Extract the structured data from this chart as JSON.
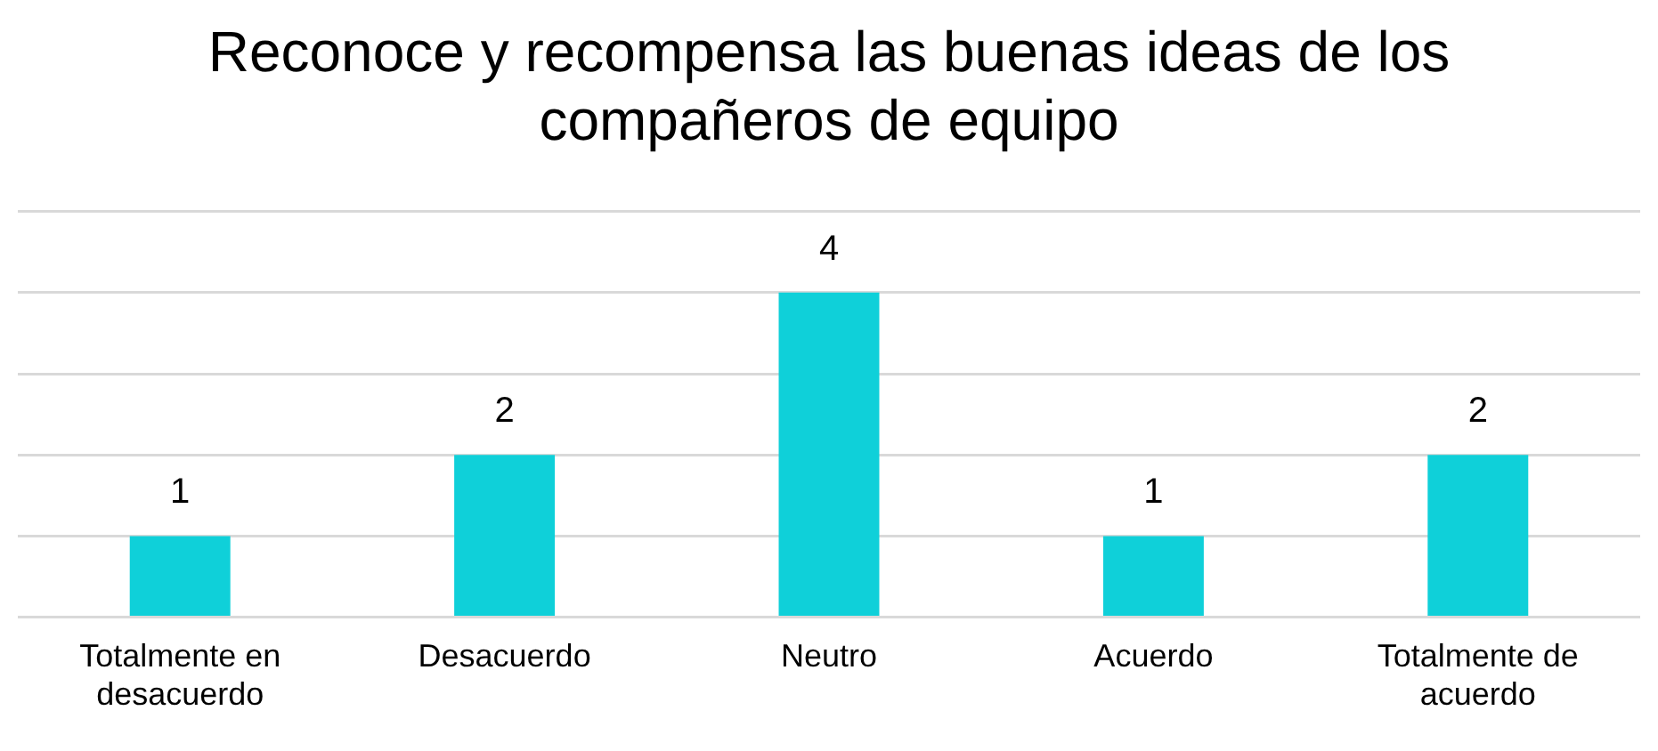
{
  "chart_data": {
    "type": "bar",
    "title": "Reconoce y recompensa las buenas ideas de los compañeros de equipo",
    "categories": [
      "Totalmente en desacuerdo",
      "Desacuerdo",
      "Neutro",
      "Acuerdo",
      "Totalmente de acuerdo"
    ],
    "values": [
      1,
      2,
      4,
      1,
      2
    ],
    "color": "#0fd0d9",
    "ylim": [
      0,
      5
    ],
    "yticks": [
      {
        "value": 0,
        "label": null
      },
      {
        "value": 1,
        "label": null
      },
      {
        "value": 2,
        "label": null
      },
      {
        "value": 3,
        "label": null
      },
      {
        "value": 4,
        "label": null
      },
      {
        "value": 5,
        "label": null
      }
    ],
    "tick_labels": "x",
    "grid": "y",
    "data_labels": true,
    "legend": false
  }
}
